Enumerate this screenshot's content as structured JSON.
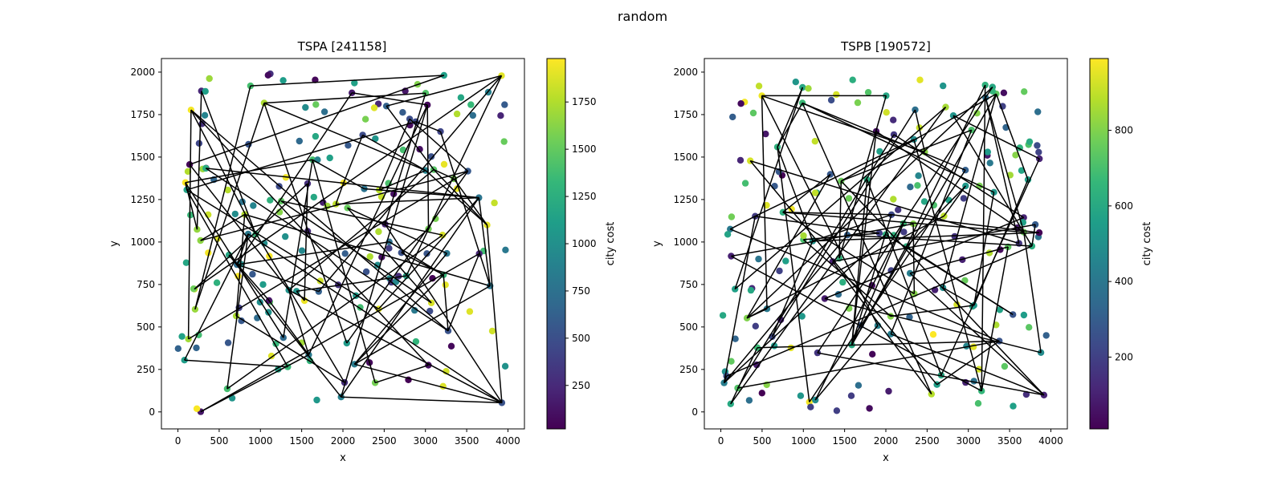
{
  "figure": {
    "suptitle": "random"
  },
  "colorbar": {
    "colormap": "viridis",
    "stops": [
      "#440154",
      "#482878",
      "#3e4989",
      "#31688e",
      "#26828e",
      "#1f9e89",
      "#35b779",
      "#6ece58",
      "#b5de2b",
      "#fde725"
    ]
  },
  "chart_data": [
    {
      "type": "scatter",
      "title": "TSPA [241158]",
      "xlabel": "x",
      "ylabel": "y",
      "xlim": [
        -200,
        4200
      ],
      "ylim": [
        -100,
        2080
      ],
      "xticks": [
        0,
        500,
        1000,
        1500,
        2000,
        2500,
        3000,
        3500,
        4000
      ],
      "yticks": [
        0,
        250,
        500,
        750,
        1000,
        1250,
        1500,
        1750,
        2000
      ],
      "colorbar_label": "city cost",
      "color_range": [
        20,
        1980
      ],
      "colorbar_ticks": [
        250,
        500,
        750,
        1000,
        1250,
        1500,
        1750
      ],
      "seed": 11,
      "num_points": 200,
      "path_segments": 100,
      "line_color": "#000000"
    },
    {
      "type": "scatter",
      "title": "TSPB [190572]",
      "xlabel": "x",
      "ylabel": "y",
      "xlim": [
        -200,
        4200
      ],
      "ylim": [
        -100,
        2080
      ],
      "xticks": [
        0,
        500,
        1000,
        1500,
        2000,
        2500,
        3000,
        3500,
        4000
      ],
      "yticks": [
        0,
        250,
        500,
        750,
        1000,
        1250,
        1500,
        1750,
        2000
      ],
      "colorbar_label": "city cost",
      "color_range": [
        10,
        990
      ],
      "colorbar_ticks": [
        200,
        400,
        600,
        800
      ],
      "seed": 29,
      "num_points": 200,
      "path_segments": 100,
      "line_color": "#000000"
    }
  ]
}
